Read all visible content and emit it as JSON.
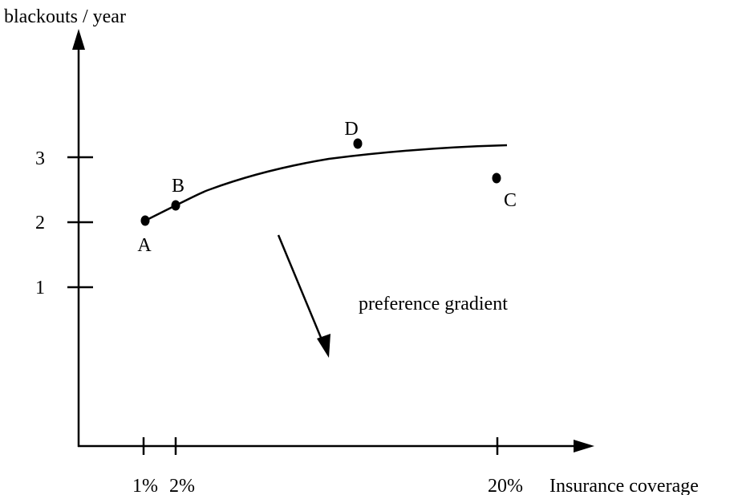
{
  "axes": {
    "y_label": "blackouts / year",
    "x_label": "Insurance coverage",
    "y_ticks": [
      "1",
      "2",
      "3"
    ],
    "x_ticks": [
      "1%",
      "2%",
      "20%"
    ]
  },
  "points": [
    {
      "label": "A"
    },
    {
      "label": "B"
    },
    {
      "label": "D"
    },
    {
      "label": "C"
    }
  ],
  "annotation": "preference gradient"
}
